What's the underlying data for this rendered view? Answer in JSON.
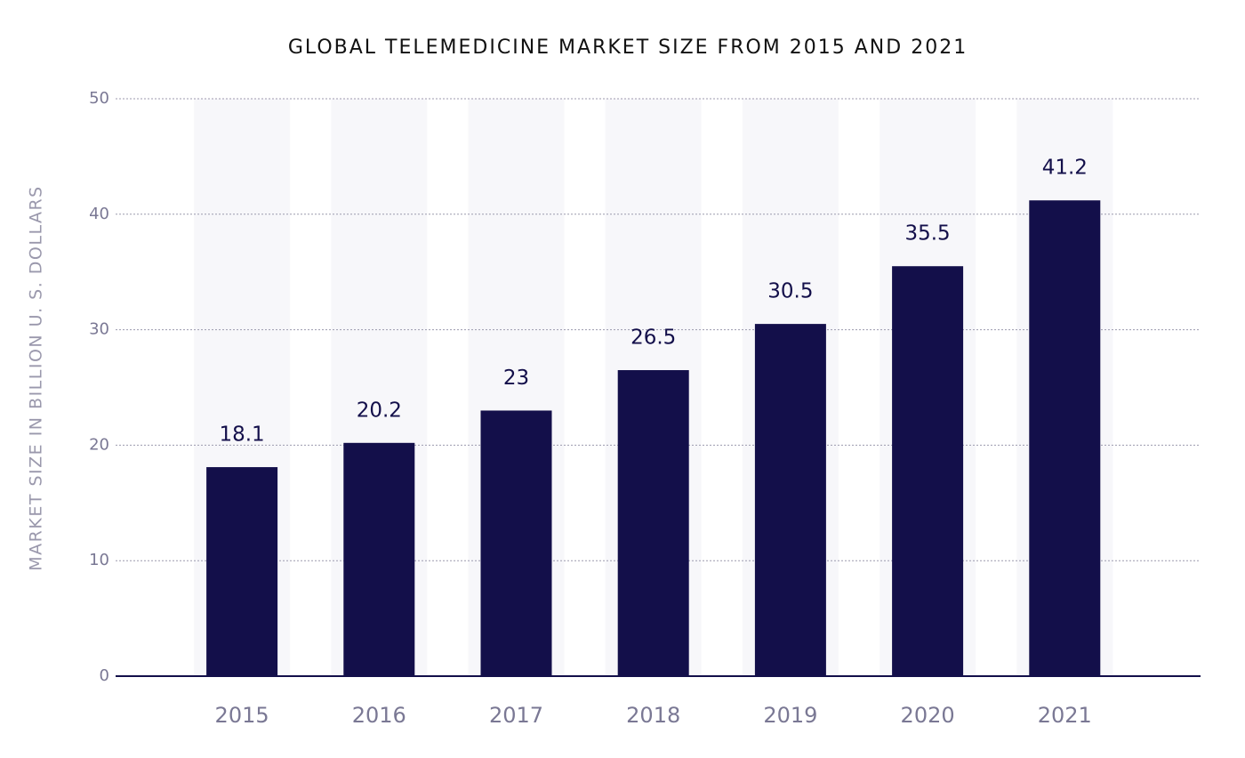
{
  "chart_data": {
    "type": "bar",
    "title": "GLOBAL TELEMEDICINE MARKET SIZE FROM 2015 AND 2021",
    "y_label": "MARKET SIZE IN BILLION U. S. DOLLARS",
    "categories": [
      "2015",
      "2016",
      "2017",
      "2018",
      "2019",
      "2020",
      "2021"
    ],
    "values": [
      18.1,
      20.2,
      23,
      26.5,
      30.5,
      35.5,
      41.2
    ],
    "color": "#130f4a",
    "ylim": [
      0,
      50
    ],
    "yticks": [
      0,
      10,
      20,
      30,
      40,
      50
    ],
    "grid": true
  }
}
